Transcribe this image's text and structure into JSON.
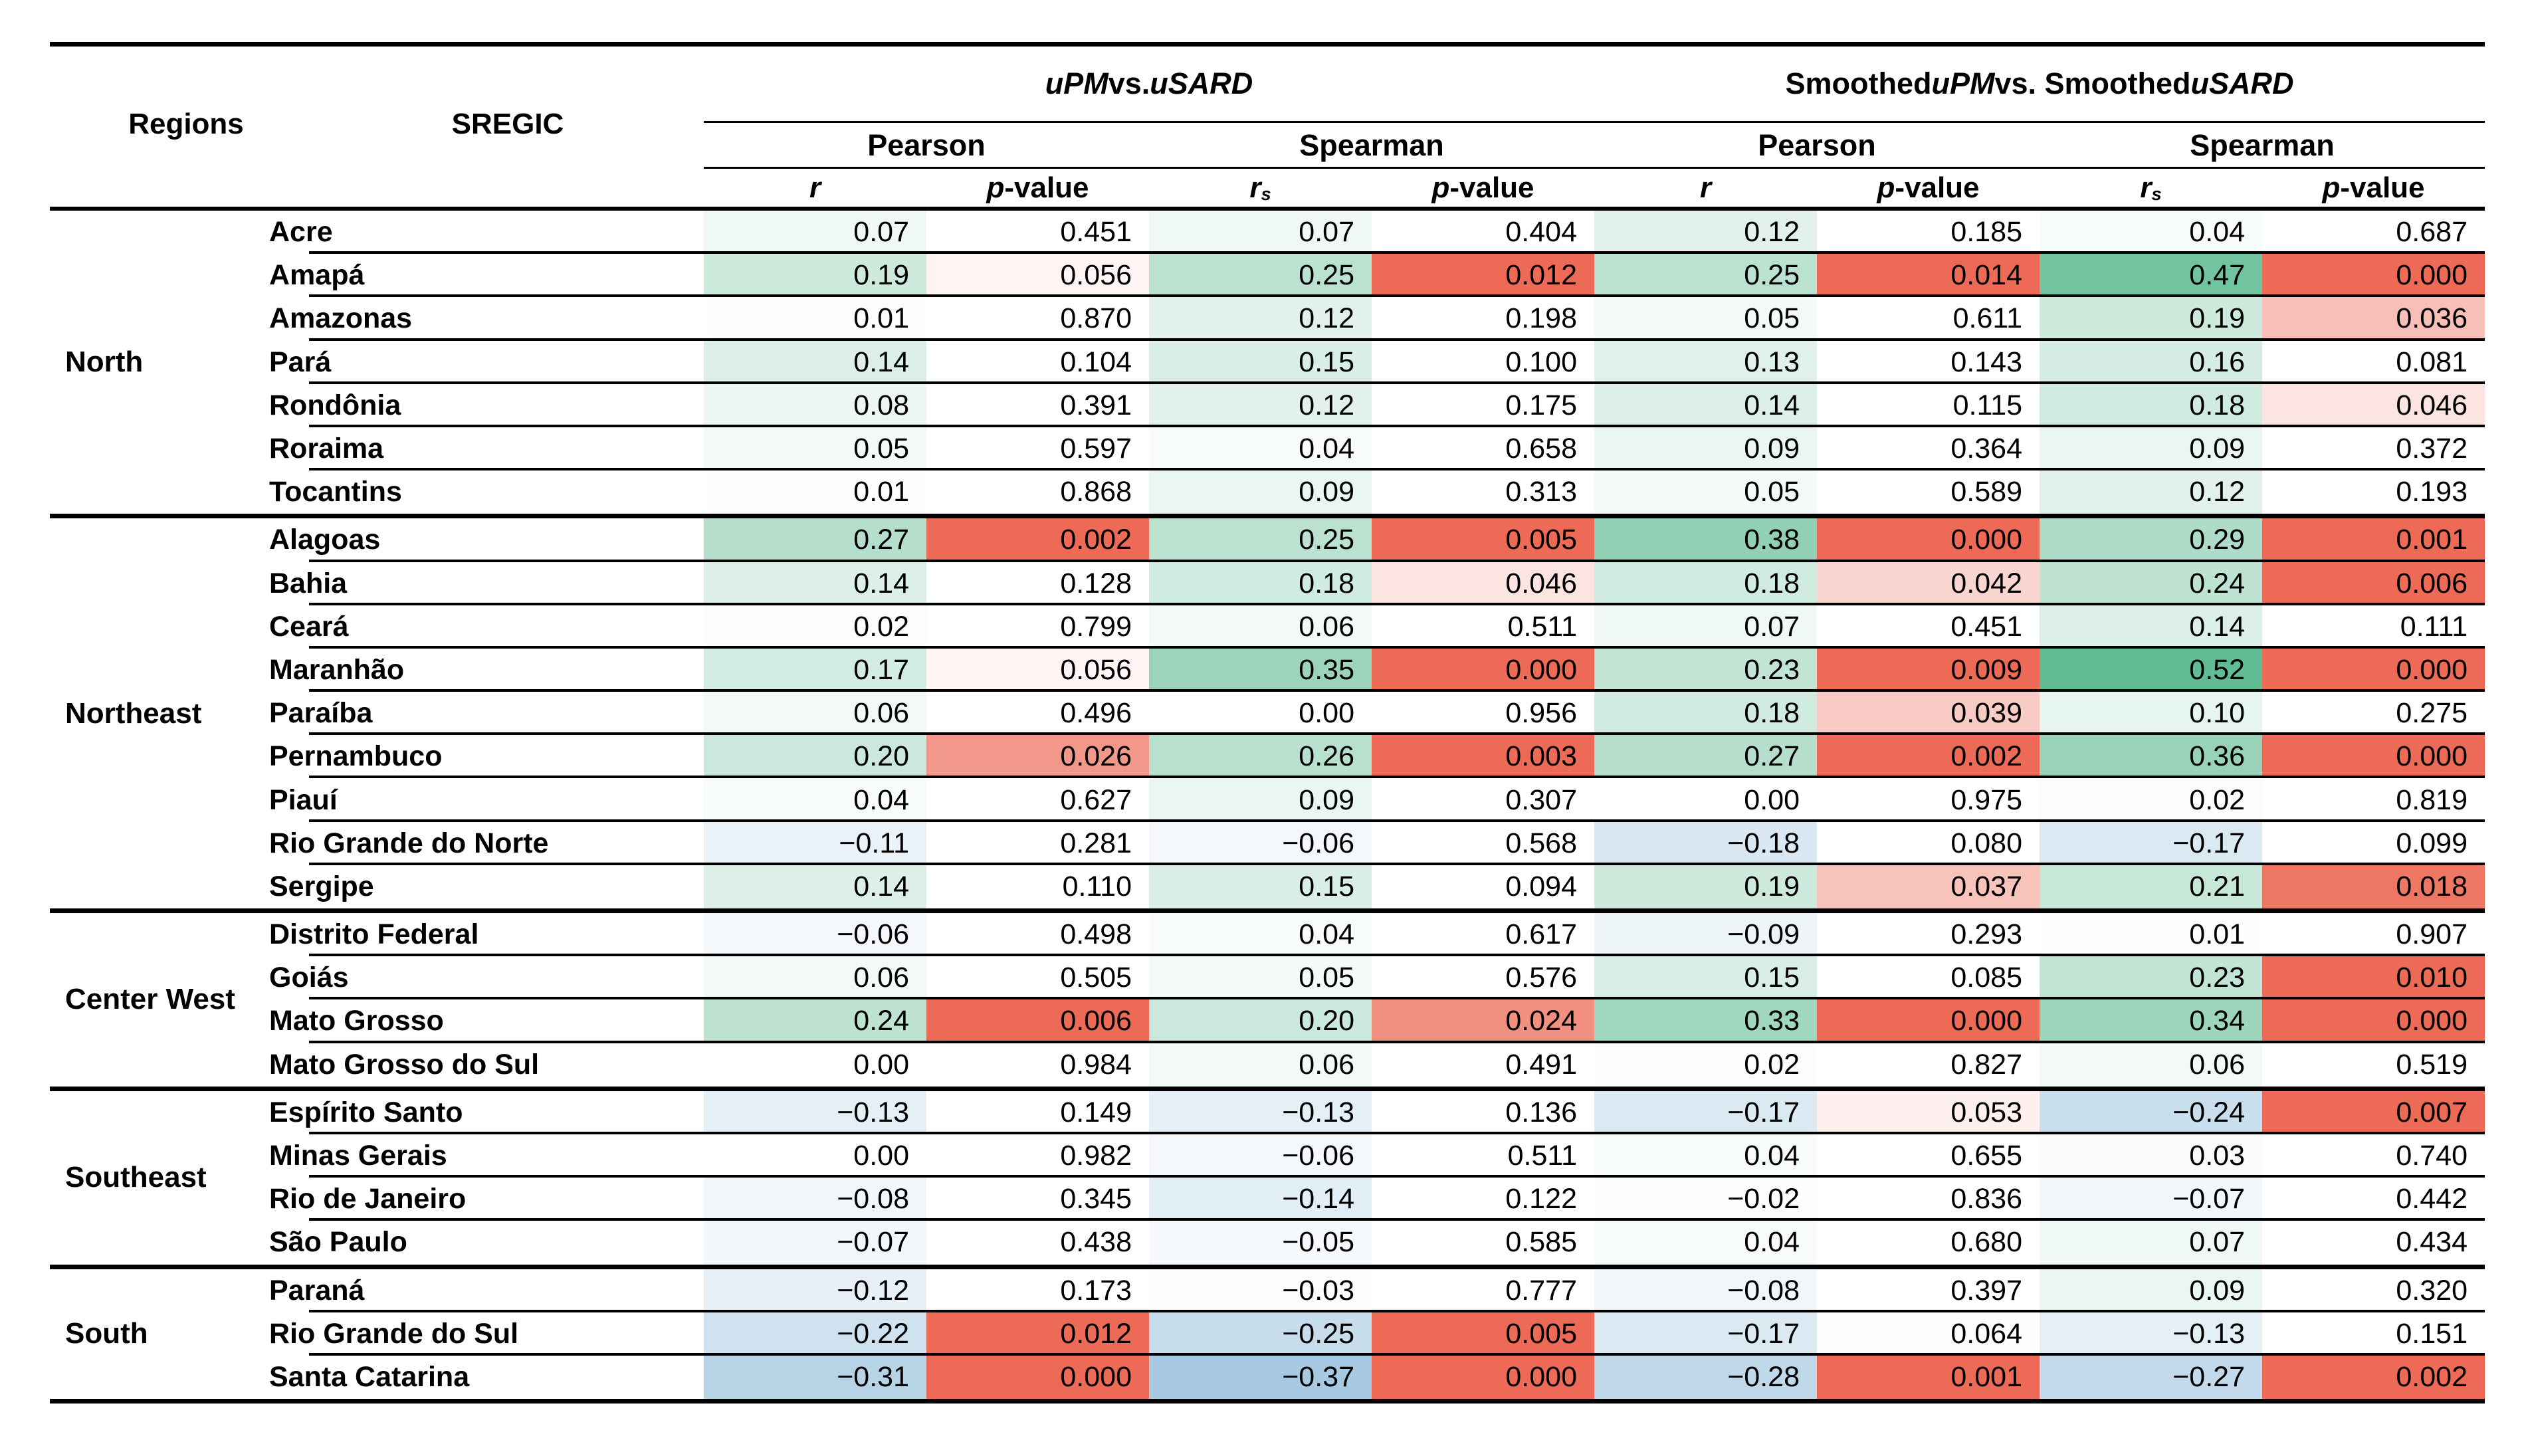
{
  "table": {
    "header": {
      "regions_label": "Regions",
      "sregic_label": "SREGIC",
      "group1_parts": [
        {
          "text": "uPM",
          "italic": true
        },
        {
          "text": " vs. ",
          "italic": false
        },
        {
          "text": "uSARD",
          "italic": true
        }
      ],
      "group2_parts": [
        {
          "text": "Smoothed ",
          "italic": false
        },
        {
          "text": "uPM",
          "italic": true
        },
        {
          "text": " vs. Smoothed ",
          "italic": false
        },
        {
          "text": "uSARD",
          "italic": true
        }
      ],
      "pearson_label": "Pearson",
      "spearman_label": "Spearman",
      "stat_columns": [
        {
          "kind": "r"
        },
        {
          "kind": "p"
        },
        {
          "kind": "rs"
        },
        {
          "kind": "p"
        },
        {
          "kind": "r"
        },
        {
          "kind": "p"
        },
        {
          "kind": "rs"
        },
        {
          "kind": "p"
        }
      ],
      "labels": {
        "r": "r",
        "rs_base": "r",
        "rs_sub": "s",
        "p_italic": "p",
        "p_rest": "-value"
      }
    },
    "heatmap": {
      "positive_r_color": "#4cb285",
      "negative_r_color": "#6ca6ce",
      "significant_p_color": "#ec6a56",
      "r_full_scale": 0.58,
      "r_gamma": 1.15,
      "p_breakpoints": [
        [
          0.015,
          1
        ],
        [
          0.025,
          0.72
        ],
        [
          0.037,
          0.4
        ],
        [
          0.047,
          0.15
        ],
        [
          0.06,
          0.04
        ],
        [
          0.065,
          0
        ]
      ]
    },
    "regions": [
      {
        "name": "North",
        "states": [
          {
            "name": "Acre",
            "values": [
              "0.07",
              "0.451",
              "0.07",
              "0.404",
              "0.12",
              "0.185",
              "0.04",
              "0.687"
            ]
          },
          {
            "name": "Amapá",
            "values": [
              "0.19",
              "0.056",
              "0.25",
              "0.012",
              "0.25",
              "0.014",
              "0.47",
              "0.000"
            ]
          },
          {
            "name": "Amazonas",
            "values": [
              "0.01",
              "0.870",
              "0.12",
              "0.198",
              "0.05",
              "0.611",
              "0.19",
              "0.036"
            ]
          },
          {
            "name": "Pará",
            "values": [
              "0.14",
              "0.104",
              "0.15",
              "0.100",
              "0.13",
              "0.143",
              "0.16",
              "0.081"
            ]
          },
          {
            "name": "Rondônia",
            "values": [
              "0.08",
              "0.391",
              "0.12",
              "0.175",
              "0.14",
              "0.115",
              "0.18",
              "0.046"
            ]
          },
          {
            "name": "Roraima",
            "values": [
              "0.05",
              "0.597",
              "0.04",
              "0.658",
              "0.09",
              "0.364",
              "0.09",
              "0.372"
            ]
          },
          {
            "name": "Tocantins",
            "values": [
              "0.01",
              "0.868",
              "0.09",
              "0.313",
              "0.05",
              "0.589",
              "0.12",
              "0.193"
            ]
          }
        ]
      },
      {
        "name": "Northeast",
        "states": [
          {
            "name": "Alagoas",
            "values": [
              "0.27",
              "0.002",
              "0.25",
              "0.005",
              "0.38",
              "0.000",
              "0.29",
              "0.001"
            ]
          },
          {
            "name": "Bahia",
            "values": [
              "0.14",
              "0.128",
              "0.18",
              "0.046",
              "0.18",
              "0.042",
              "0.24",
              "0.006"
            ]
          },
          {
            "name": "Ceará",
            "values": [
              "0.02",
              "0.799",
              "0.06",
              "0.511",
              "0.07",
              "0.451",
              "0.14",
              "0.111"
            ]
          },
          {
            "name": "Maranhão",
            "values": [
              "0.17",
              "0.056",
              "0.35",
              "0.000",
              "0.23",
              "0.009",
              "0.52",
              "0.000"
            ]
          },
          {
            "name": "Paraíba",
            "values": [
              "0.06",
              "0.496",
              "0.00",
              "0.956",
              "0.18",
              "0.039",
              "0.10",
              "0.275"
            ]
          },
          {
            "name": "Pernambuco",
            "values": [
              "0.20",
              "0.026",
              "0.26",
              "0.003",
              "0.27",
              "0.002",
              "0.36",
              "0.000"
            ]
          },
          {
            "name": "Piauí",
            "values": [
              "0.04",
              "0.627",
              "0.09",
              "0.307",
              "0.00",
              "0.975",
              "0.02",
              "0.819"
            ]
          },
          {
            "name": "Rio Grande do Norte",
            "values": [
              "−0.11",
              "0.281",
              "−0.06",
              "0.568",
              "−0.18",
              "0.080",
              "−0.17",
              "0.099"
            ]
          },
          {
            "name": "Sergipe",
            "values": [
              "0.14",
              "0.110",
              "0.15",
              "0.094",
              "0.19",
              "0.037",
              "0.21",
              "0.018"
            ]
          }
        ]
      },
      {
        "name": "Center West",
        "states": [
          {
            "name": "Distrito Federal",
            "values": [
              "−0.06",
              "0.498",
              "0.04",
              "0.617",
              "−0.09",
              "0.293",
              "0.01",
              "0.907"
            ]
          },
          {
            "name": "Goiás",
            "values": [
              "0.06",
              "0.505",
              "0.05",
              "0.576",
              "0.15",
              "0.085",
              "0.23",
              "0.010"
            ]
          },
          {
            "name": "Mato Grosso",
            "values": [
              "0.24",
              "0.006",
              "0.20",
              "0.024",
              "0.33",
              "0.000",
              "0.34",
              "0.000"
            ]
          },
          {
            "name": "Mato Grosso do Sul",
            "values": [
              "0.00",
              "0.984",
              "0.06",
              "0.491",
              "0.02",
              "0.827",
              "0.06",
              "0.519"
            ]
          }
        ]
      },
      {
        "name": "Southeast",
        "states": [
          {
            "name": "Espírito Santo",
            "values": [
              "−0.13",
              "0.149",
              "−0.13",
              "0.136",
              "−0.17",
              "0.053",
              "−0.24",
              "0.007"
            ]
          },
          {
            "name": "Minas Gerais",
            "values": [
              "0.00",
              "0.982",
              "−0.06",
              "0.511",
              "0.04",
              "0.655",
              "0.03",
              "0.740"
            ]
          },
          {
            "name": "Rio de Janeiro",
            "values": [
              "−0.08",
              "0.345",
              "−0.14",
              "0.122",
              "−0.02",
              "0.836",
              "−0.07",
              "0.442"
            ]
          },
          {
            "name": "São Paulo",
            "values": [
              "−0.07",
              "0.438",
              "−0.05",
              "0.585",
              "0.04",
              "0.680",
              "0.07",
              "0.434"
            ]
          }
        ]
      },
      {
        "name": "South",
        "states": [
          {
            "name": "Paraná",
            "values": [
              "−0.12",
              "0.173",
              "−0.03",
              "0.777",
              "−0.08",
              "0.397",
              "0.09",
              "0.320"
            ]
          },
          {
            "name": "Rio Grande do Sul",
            "values": [
              "−0.22",
              "0.012",
              "−0.25",
              "0.005",
              "−0.17",
              "0.064",
              "−0.13",
              "0.151"
            ]
          },
          {
            "name": "Santa Catarina",
            "values": [
              "−0.31",
              "0.000",
              "−0.37",
              "0.000",
              "−0.28",
              "0.001",
              "−0.27",
              "0.002"
            ]
          }
        ]
      }
    ]
  }
}
